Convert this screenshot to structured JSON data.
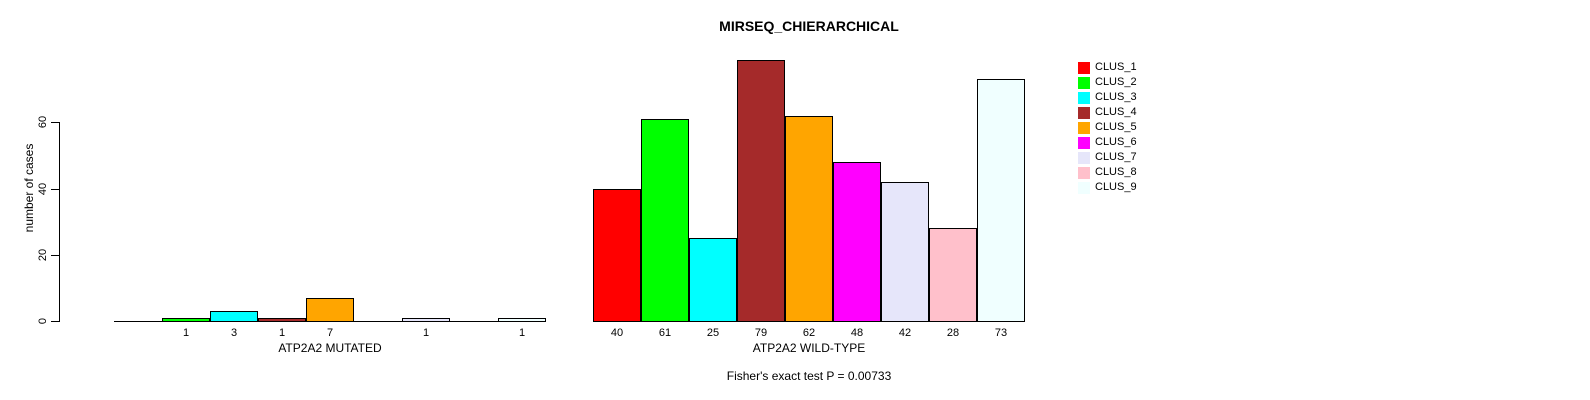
{
  "chart_data": {
    "type": "bar",
    "title": "MIRSEQ_CHIERARCHICAL",
    "ylabel": "number of cases",
    "xlabel": "",
    "yticks": [
      0,
      20,
      40,
      60
    ],
    "ylim": [
      0,
      79
    ],
    "grid": false,
    "legend_position": "right",
    "categories": [
      "CLUS_1",
      "CLUS_2",
      "CLUS_3",
      "CLUS_4",
      "CLUS_5",
      "CLUS_6",
      "CLUS_7",
      "CLUS_8",
      "CLUS_9"
    ],
    "colors": [
      "#ff0000",
      "#00ff00",
      "#00ffff",
      "#a52a2a",
      "#ffa500",
      "#ff00ff",
      "#e6e6fa",
      "#ffc0cb",
      "#f0ffff"
    ],
    "groups": [
      {
        "label": "ATP2A2 MUTATED",
        "values": [
          0,
          1,
          3,
          1,
          7,
          0,
          1,
          0,
          1
        ]
      },
      {
        "label": "ATP2A2 WILD-TYPE",
        "values": [
          40,
          61,
          25,
          79,
          62,
          48,
          42,
          28,
          73
        ]
      }
    ],
    "annotation": "Fisher's exact test P = 0.00733"
  }
}
